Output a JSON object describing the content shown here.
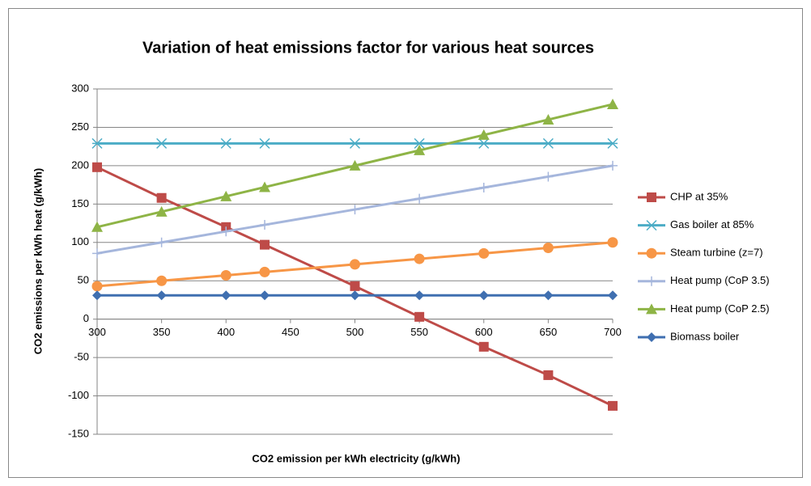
{
  "chart_data": {
    "type": "line",
    "title": "Variation of heat emissions factor for various heat sources",
    "x_label": "CO2 emission per kWh electricity (g/kWh)",
    "y_label": "CO2 emissions per kWh heat (g/kWh)",
    "x": [
      300,
      350,
      400,
      430,
      500,
      550,
      600,
      650,
      700
    ],
    "xlim": [
      300,
      700
    ],
    "xticks": [
      300,
      350,
      400,
      450,
      500,
      550,
      600,
      650,
      700
    ],
    "ylim": [
      -150,
      300
    ],
    "yticks": [
      -150,
      -100,
      -50,
      0,
      50,
      100,
      150,
      200,
      250,
      300
    ],
    "grid": true,
    "legend": "right",
    "series": [
      {
        "name": "CHP at 35%",
        "color": "#be4b48",
        "marker": "square",
        "values": [
          198,
          158,
          120,
          97,
          43,
          3,
          -36,
          -73,
          -113
        ]
      },
      {
        "name": "Gas boiler at 85%",
        "color": "#4bacc6",
        "marker": "asterisk",
        "values": [
          229,
          229,
          229,
          229,
          229,
          229,
          229,
          229,
          229
        ]
      },
      {
        "name": "Steam turbine (z=7)",
        "color": "#f79646",
        "marker": "circle",
        "values": [
          42.9,
          50,
          57.1,
          61.4,
          71.4,
          78.6,
          85.7,
          92.9,
          100
        ]
      },
      {
        "name": "Heat pump (CoP 3.5)",
        "color": "#a5b6dc",
        "marker": "plus",
        "values": [
          85.7,
          100,
          114.3,
          122.9,
          142.9,
          157.1,
          171.4,
          185.7,
          200
        ]
      },
      {
        "name": "Heat pump (CoP 2.5)",
        "color": "#8eb446",
        "marker": "triangle",
        "values": [
          120,
          140,
          160,
          172,
          200,
          220,
          240,
          260,
          280
        ]
      },
      {
        "name": "Biomass boiler",
        "color": "#3f6fb0",
        "marker": "diamond",
        "values": [
          31,
          31,
          31,
          31,
          31,
          31,
          31,
          31,
          31
        ]
      }
    ]
  }
}
